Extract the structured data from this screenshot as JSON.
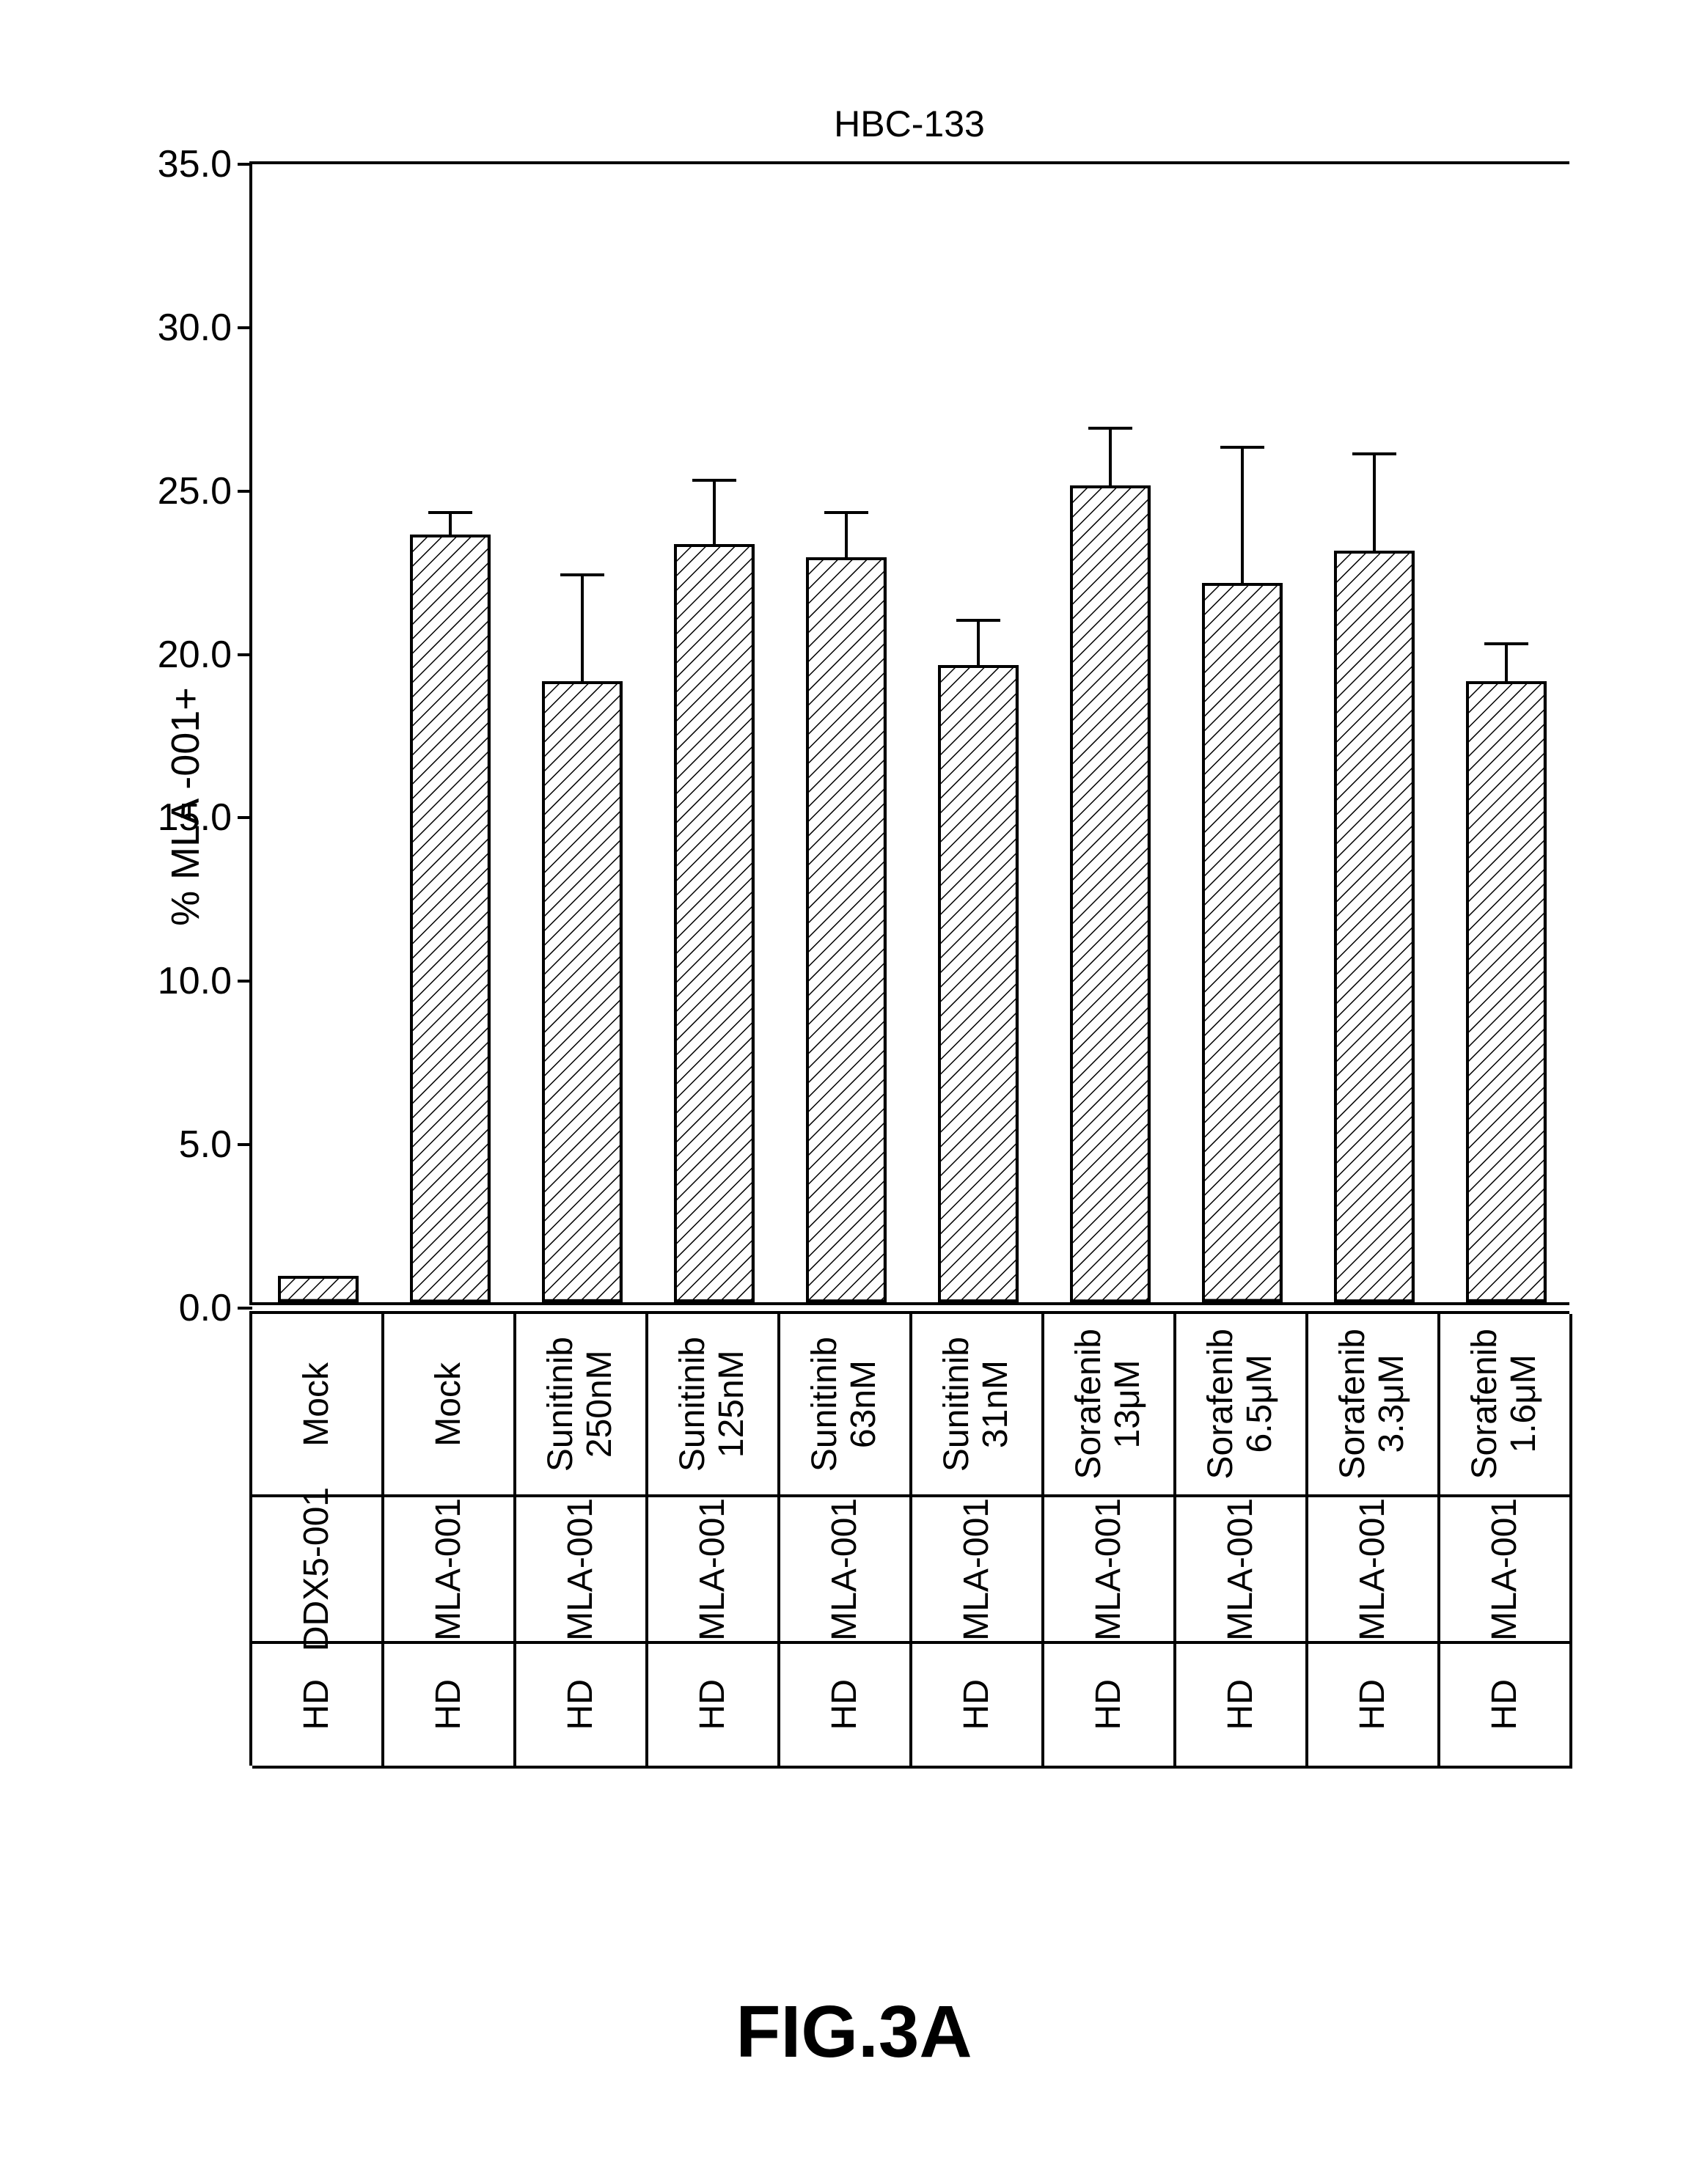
{
  "chart": {
    "type": "bar",
    "title": "HBC-133",
    "title_fontsize": 50,
    "ylabel": "% MLA -001+",
    "ylabel_fontsize": 54,
    "ylim": [
      0,
      35
    ],
    "ytick_step": 5,
    "yticks": [
      "0.0",
      "5.0",
      "10.0",
      "15.0",
      "20.0",
      "25.0",
      "30.0",
      "35.0"
    ],
    "background_color": "#ffffff",
    "axis_color": "#000000",
    "bar_border_color": "#000000",
    "bar_fill": "hatch-diag",
    "hatch_stroke": "#000000",
    "bar_width_ratio": 0.61,
    "categories": [
      {
        "row1": "Mock",
        "row2": "DDX5-001",
        "row3": "HD",
        "value": 0.8,
        "err": 0.0
      },
      {
        "row1": "Mock",
        "row2": "MLA-001",
        "row3": "HD",
        "value": 23.5,
        "err": 0.7
      },
      {
        "row1": "Sunitinib\n250nM",
        "row2": "MLA-001",
        "row3": "HD",
        "value": 19.0,
        "err": 3.3
      },
      {
        "row1": "Sunitinib\n125nM",
        "row2": "MLA-001",
        "row3": "HD",
        "value": 23.2,
        "err": 2.0
      },
      {
        "row1": "Sunitinib\n63nM",
        "row2": "MLA-001",
        "row3": "HD",
        "value": 22.8,
        "err": 1.4
      },
      {
        "row1": "Sunitinib\n31nM",
        "row2": "MLA-001",
        "row3": "HD",
        "value": 19.5,
        "err": 1.4
      },
      {
        "row1": "Sorafenib\n13μM",
        "row2": "MLA-001",
        "row3": "HD",
        "value": 25.0,
        "err": 1.8
      },
      {
        "row1": "Sorafenib\n6.5μM",
        "row2": "MLA-001",
        "row3": "HD",
        "value": 22.0,
        "err": 4.2
      },
      {
        "row1": "Sorafenib\n3.3μM",
        "row2": "MLA-001",
        "row3": "HD",
        "value": 23.0,
        "err": 3.0
      },
      {
        "row1": "Sorafenib\n1.6μM",
        "row2": "MLA-001",
        "row3": "HD",
        "value": 19.0,
        "err": 1.2
      }
    ]
  },
  "figure_label": "FIG.3A",
  "figure_label_fontsize": 100,
  "colors": {
    "page_bg": "#ffffff",
    "ink": "#000000"
  }
}
